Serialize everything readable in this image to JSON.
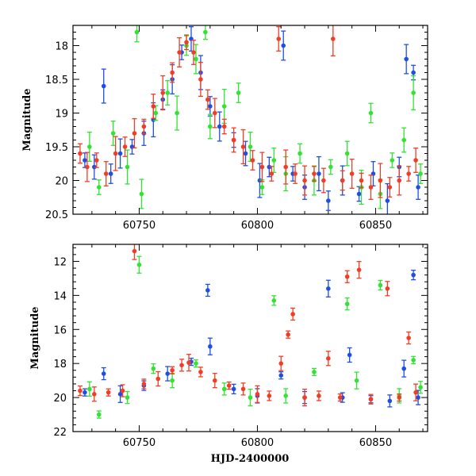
{
  "chart_data": [
    {
      "type": "scatter",
      "panel": "top",
      "xlabel": "",
      "ylabel": "Magnitude",
      "xlim": [
        60722,
        60872
      ],
      "ylim": [
        20.5,
        17.7
      ],
      "y_inverted": true,
      "xticks": [
        60750,
        60800,
        60850
      ],
      "xticklabels": [
        "60750",
        "60800",
        "60850"
      ],
      "yticks": [
        18,
        18.5,
        19,
        19.5,
        20,
        20.5
      ],
      "yticklabels": [
        "18",
        "18.5",
        "19",
        "19.5",
        "20",
        "20.5"
      ],
      "grid": false,
      "series": [
        {
          "color": "#1f4fe0",
          "points": [
            [
              60727,
              19.7
            ],
            [
              60731,
              19.8
            ],
            [
              60735,
              18.6
            ],
            [
              60738,
              19.9
            ],
            [
              60742,
              19.6
            ],
            [
              60747,
              19.5
            ],
            [
              60752,
              19.3
            ],
            [
              60756,
              19.1
            ],
            [
              60760,
              18.8
            ],
            [
              60764,
              18.5
            ],
            [
              60768,
              18.1
            ],
            [
              60772,
              17.9
            ],
            [
              60776,
              18.4
            ],
            [
              60780,
              18.9
            ],
            [
              60784,
              19.2
            ],
            [
              60790,
              19.4
            ],
            [
              60795,
              19.6
            ],
            [
              60801,
              20.0
            ],
            [
              60805,
              19.8
            ],
            [
              60811,
              18.0
            ],
            [
              60815,
              19.9
            ],
            [
              60820,
              20.1
            ],
            [
              60826,
              19.9
            ],
            [
              60830,
              20.3
            ],
            [
              60836,
              20.0
            ],
            [
              60843,
              20.2
            ],
            [
              60849,
              19.9
            ],
            [
              60855,
              20.3
            ],
            [
              60860,
              19.8
            ],
            [
              60863,
              18.2
            ],
            [
              60866,
              18.4
            ],
            [
              60868,
              20.1
            ]
          ]
        },
        {
          "color": "#33e233",
          "points": [
            [
              60729,
              19.5
            ],
            [
              60733,
              20.1
            ],
            [
              60739,
              19.3
            ],
            [
              60745,
              19.8
            ],
            [
              60749,
              17.8
            ],
            [
              60751,
              20.2
            ],
            [
              60757,
              19.0
            ],
            [
              60762,
              18.7
            ],
            [
              60766,
              19.0
            ],
            [
              60770,
              18.0
            ],
            [
              60774,
              18.2
            ],
            [
              60778,
              17.8
            ],
            [
              60780,
              19.2
            ],
            [
              60786,
              18.9
            ],
            [
              60792,
              18.7
            ],
            [
              60797,
              19.5
            ],
            [
              60802,
              20.1
            ],
            [
              60807,
              19.7
            ],
            [
              60812,
              19.9
            ],
            [
              60818,
              19.6
            ],
            [
              60824,
              20.0
            ],
            [
              60831,
              19.8
            ],
            [
              60838,
              19.6
            ],
            [
              60844,
              20.1
            ],
            [
              60848,
              19.0
            ],
            [
              60852,
              20.2
            ],
            [
              60857,
              19.7
            ],
            [
              60862,
              19.4
            ],
            [
              60866,
              18.7
            ],
            [
              60869,
              19.9
            ]
          ]
        },
        {
          "color": "#f23d26",
          "points": [
            [
              60725,
              19.6
            ],
            [
              60728,
              19.8
            ],
            [
              60732,
              19.7
            ],
            [
              60736,
              19.9
            ],
            [
              60740,
              19.6
            ],
            [
              60744,
              19.5
            ],
            [
              60748,
              19.3
            ],
            [
              60752,
              19.2
            ],
            [
              60756,
              18.9
            ],
            [
              60760,
              18.7
            ],
            [
              60764,
              18.4
            ],
            [
              60767,
              18.1
            ],
            [
              60770,
              17.95
            ],
            [
              60773,
              18.1
            ],
            [
              60776,
              18.5
            ],
            [
              60779,
              18.8
            ],
            [
              60782,
              19.0
            ],
            [
              60786,
              19.2
            ],
            [
              60790,
              19.4
            ],
            [
              60794,
              19.5
            ],
            [
              60798,
              19.7
            ],
            [
              60802,
              19.8
            ],
            [
              60806,
              19.9
            ],
            [
              60809,
              17.9
            ],
            [
              60812,
              19.8
            ],
            [
              60816,
              19.9
            ],
            [
              60820,
              20.0
            ],
            [
              60824,
              19.9
            ],
            [
              60828,
              20.0
            ],
            [
              60832,
              17.9
            ],
            [
              60836,
              20.0
            ],
            [
              60840,
              19.9
            ],
            [
              60844,
              20.0
            ],
            [
              60848,
              20.1
            ],
            [
              60852,
              20.0
            ],
            [
              60856,
              20.1
            ],
            [
              60860,
              20.0
            ],
            [
              60864,
              19.9
            ],
            [
              60867,
              19.7
            ]
          ]
        }
      ]
    },
    {
      "type": "scatter",
      "panel": "bottom",
      "xlabel": "HJD-2400000",
      "ylabel": "Magnitude",
      "xlim": [
        60722,
        60872
      ],
      "ylim": [
        22,
        11
      ],
      "y_inverted": true,
      "xticks": [
        60750,
        60800,
        60850
      ],
      "xticklabels": [
        "60750",
        "60800",
        "60850"
      ],
      "yticks": [
        12,
        14,
        16,
        18,
        20,
        22
      ],
      "yticklabels": [
        "12",
        "14",
        "16",
        "18",
        "20",
        "22"
      ],
      "grid": false,
      "series": [
        {
          "color": "#1f4fe0",
          "points": [
            [
              60727,
              19.7
            ],
            [
              60735,
              18.6
            ],
            [
              60742,
              19.8
            ],
            [
              60752,
              19.3
            ],
            [
              60762,
              18.6
            ],
            [
              60772,
              17.9
            ],
            [
              60779,
              13.7
            ],
            [
              60780,
              17.0
            ],
            [
              60790,
              19.5
            ],
            [
              60800,
              19.9
            ],
            [
              60810,
              18.7
            ],
            [
              60820,
              20.0
            ],
            [
              60830,
              13.6
            ],
            [
              60836,
              20.0
            ],
            [
              60839,
              17.5
            ],
            [
              60848,
              20.1
            ],
            [
              60856,
              20.2
            ],
            [
              60862,
              18.3
            ],
            [
              60866,
              12.8
            ],
            [
              60868,
              20.0
            ]
          ]
        },
        {
          "color": "#33e233",
          "points": [
            [
              60729,
              19.5
            ],
            [
              60733,
              21.0
            ],
            [
              60745,
              20.0
            ],
            [
              60750,
              12.2
            ],
            [
              60756,
              18.3
            ],
            [
              60764,
              19.0
            ],
            [
              60774,
              18.0
            ],
            [
              60786,
              19.5
            ],
            [
              60797,
              20.0
            ],
            [
              60807,
              14.3
            ],
            [
              60812,
              19.9
            ],
            [
              60824,
              18.5
            ],
            [
              60838,
              14.5
            ],
            [
              60842,
              19.0
            ],
            [
              60852,
              13.4
            ],
            [
              60860,
              19.9
            ],
            [
              60866,
              17.8
            ],
            [
              60869,
              19.4
            ]
          ]
        },
        {
          "color": "#f23d26",
          "points": [
            [
              60725,
              19.6
            ],
            [
              60731,
              19.8
            ],
            [
              60737,
              19.7
            ],
            [
              60743,
              19.6
            ],
            [
              60748,
              11.4
            ],
            [
              60752,
              19.2
            ],
            [
              60758,
              18.9
            ],
            [
              60764,
              18.4
            ],
            [
              60768,
              18.1
            ],
            [
              60771,
              17.95
            ],
            [
              60776,
              18.5
            ],
            [
              60782,
              19.0
            ],
            [
              60788,
              19.3
            ],
            [
              60794,
              19.5
            ],
            [
              60800,
              19.8
            ],
            [
              60805,
              19.9
            ],
            [
              60810,
              18.0
            ],
            [
              60813,
              16.3
            ],
            [
              60815,
              15.1
            ],
            [
              60820,
              20.0
            ],
            [
              60826,
              19.9
            ],
            [
              60830,
              17.7
            ],
            [
              60835,
              20.0
            ],
            [
              60838,
              12.9
            ],
            [
              60843,
              12.5
            ],
            [
              60848,
              20.1
            ],
            [
              60855,
              13.6
            ],
            [
              60860,
              20.0
            ],
            [
              60864,
              16.5
            ],
            [
              60867,
              19.7
            ]
          ]
        }
      ]
    }
  ]
}
